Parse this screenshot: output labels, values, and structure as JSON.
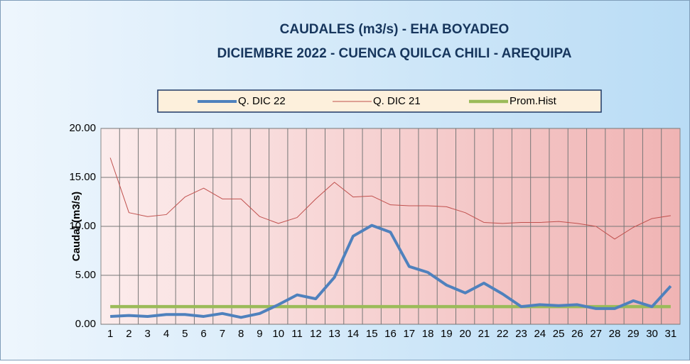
{
  "chart_data": {
    "type": "line",
    "title": "CAUDALES (m3/s) - EHA BOYADEO",
    "subtitle": "DICIEMBRE 2022 -  CUENCA QUILCA CHILI - AREQUIPA",
    "y_label": "Caudal  (m3/s)",
    "categories": [
      "1",
      "2",
      "3",
      "4",
      "5",
      "6",
      "7",
      "8",
      "9",
      "10",
      "11",
      "12",
      "13",
      "14",
      "15",
      "16",
      "17",
      "18",
      "19",
      "20",
      "21",
      "22",
      "23",
      "24",
      "25",
      "26",
      "27",
      "28",
      "29",
      "30",
      "31"
    ],
    "series": [
      {
        "name": "Q. DIC 22",
        "color": "#4f81bd",
        "values": [
          0.8,
          0.9,
          0.8,
          1.0,
          1.0,
          0.8,
          1.1,
          0.7,
          1.1,
          2.0,
          3.0,
          2.6,
          4.8,
          9.0,
          10.1,
          9.4,
          5.9,
          5.3,
          4.0,
          3.2,
          4.2,
          3.1,
          1.8,
          2.0,
          1.9,
          2.0,
          1.6,
          1.6,
          2.4,
          1.8,
          3.9
        ]
      },
      {
        "name": "Q. DIC 21",
        "color": "#c0504d",
        "values": [
          17.0,
          11.4,
          11.0,
          11.2,
          13.0,
          13.9,
          12.8,
          12.8,
          11.0,
          10.3,
          10.9,
          12.8,
          14.5,
          13.0,
          13.1,
          12.2,
          12.1,
          12.1,
          12.0,
          11.4,
          10.4,
          10.3,
          10.4,
          10.4,
          10.5,
          10.3,
          10.0,
          8.7,
          9.9,
          10.8,
          11.1
        ]
      },
      {
        "name": "Prom.Hist",
        "color": "#9bbb59",
        "values": [
          1.8,
          1.8,
          1.8,
          1.8,
          1.8,
          1.8,
          1.8,
          1.8,
          1.8,
          1.8,
          1.8,
          1.8,
          1.8,
          1.8,
          1.8,
          1.8,
          1.8,
          1.8,
          1.8,
          1.8,
          1.8,
          1.8,
          1.8,
          1.8,
          1.8,
          1.8,
          1.8,
          1.8,
          1.8,
          1.8,
          1.8
        ]
      }
    ],
    "ylim": [
      0,
      20
    ],
    "yticks": [
      {
        "value": 0,
        "label": "0.00"
      },
      {
        "value": 5,
        "label": "5.00"
      },
      {
        "value": 10,
        "label": "10.00"
      },
      {
        "value": 15,
        "label": "15.00"
      },
      {
        "value": 20,
        "label": "20.00"
      }
    ],
    "grid": true
  }
}
